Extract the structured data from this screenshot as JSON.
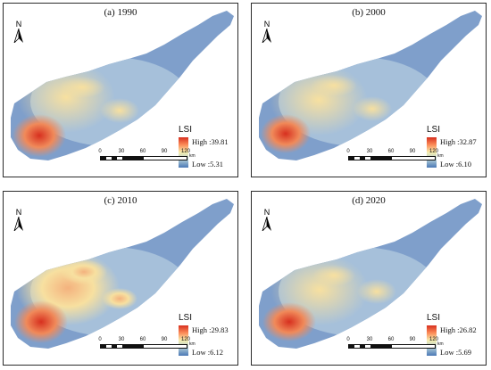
{
  "panels": [
    {
      "title": "(a) 1990",
      "north_label": "N",
      "legend_title": "LSI",
      "high_label": "High :39.81",
      "low_label": "Low :5.31",
      "high": 39.81,
      "low": 5.31
    },
    {
      "title": "(b) 2000",
      "north_label": "N",
      "legend_title": "LSI",
      "high_label": "High :32.87",
      "low_label": "Low :6.10",
      "high": 32.87,
      "low": 6.1
    },
    {
      "title": "(c) 2010",
      "north_label": "N",
      "legend_title": "LSI",
      "high_label": "High :29.83",
      "low_label": "Low :6.12",
      "high": 29.83,
      "low": 6.12
    },
    {
      "title": "(d) 2020",
      "north_label": "N",
      "legend_title": "LSI",
      "high_label": "High :26.82",
      "low_label": "Low :5.69",
      "high": 26.82,
      "low": 5.69
    }
  ],
  "scale_bar": {
    "ticks": [
      "0",
      "30",
      "60",
      "90",
      "120"
    ],
    "unit": "km"
  },
  "colors": {
    "high": "#d7301f",
    "mid": "#f6efb0",
    "low": "#4a78b5"
  }
}
